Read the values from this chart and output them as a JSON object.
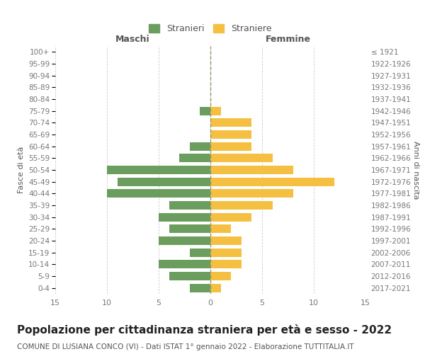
{
  "age_groups": [
    "0-4",
    "5-9",
    "10-14",
    "15-19",
    "20-24",
    "25-29",
    "30-34",
    "35-39",
    "40-44",
    "45-49",
    "50-54",
    "55-59",
    "60-64",
    "65-69",
    "70-74",
    "75-79",
    "80-84",
    "85-89",
    "90-94",
    "95-99",
    "100+"
  ],
  "birth_years": [
    "2017-2021",
    "2012-2016",
    "2007-2011",
    "2002-2006",
    "1997-2001",
    "1992-1996",
    "1987-1991",
    "1982-1986",
    "1977-1981",
    "1972-1976",
    "1967-1971",
    "1962-1966",
    "1957-1961",
    "1952-1956",
    "1947-1951",
    "1942-1946",
    "1937-1941",
    "1932-1936",
    "1927-1931",
    "1922-1926",
    "≤ 1921"
  ],
  "males": [
    2,
    4,
    5,
    2,
    5,
    4,
    5,
    4,
    10,
    9,
    10,
    3,
    2,
    0,
    0,
    1,
    0,
    0,
    0,
    0,
    0
  ],
  "females": [
    1,
    2,
    3,
    3,
    3,
    2,
    4,
    6,
    8,
    12,
    8,
    6,
    4,
    4,
    4,
    1,
    0,
    0,
    0,
    0,
    0
  ],
  "male_color": "#6b9e5e",
  "female_color": "#f5c042",
  "title": "Popolazione per cittadinanza straniera per età e sesso - 2022",
  "subtitle": "COMUNE DI LUSIANA CONCO (VI) - Dati ISTAT 1° gennaio 2022 - Elaborazione TUTTITALIA.IT",
  "xlabel_left": "Maschi",
  "xlabel_right": "Femmine",
  "ylabel_left": "Fasce di età",
  "ylabel_right": "Anni di nascita",
  "legend_male": "Stranieri",
  "legend_female": "Straniere",
  "xlim": 15,
  "background_color": "#ffffff",
  "grid_color": "#cccccc",
  "axis_label_color": "#555555",
  "tick_label_color": "#777777",
  "title_fontsize": 11,
  "subtitle_fontsize": 7.5,
  "bar_height": 0.72
}
